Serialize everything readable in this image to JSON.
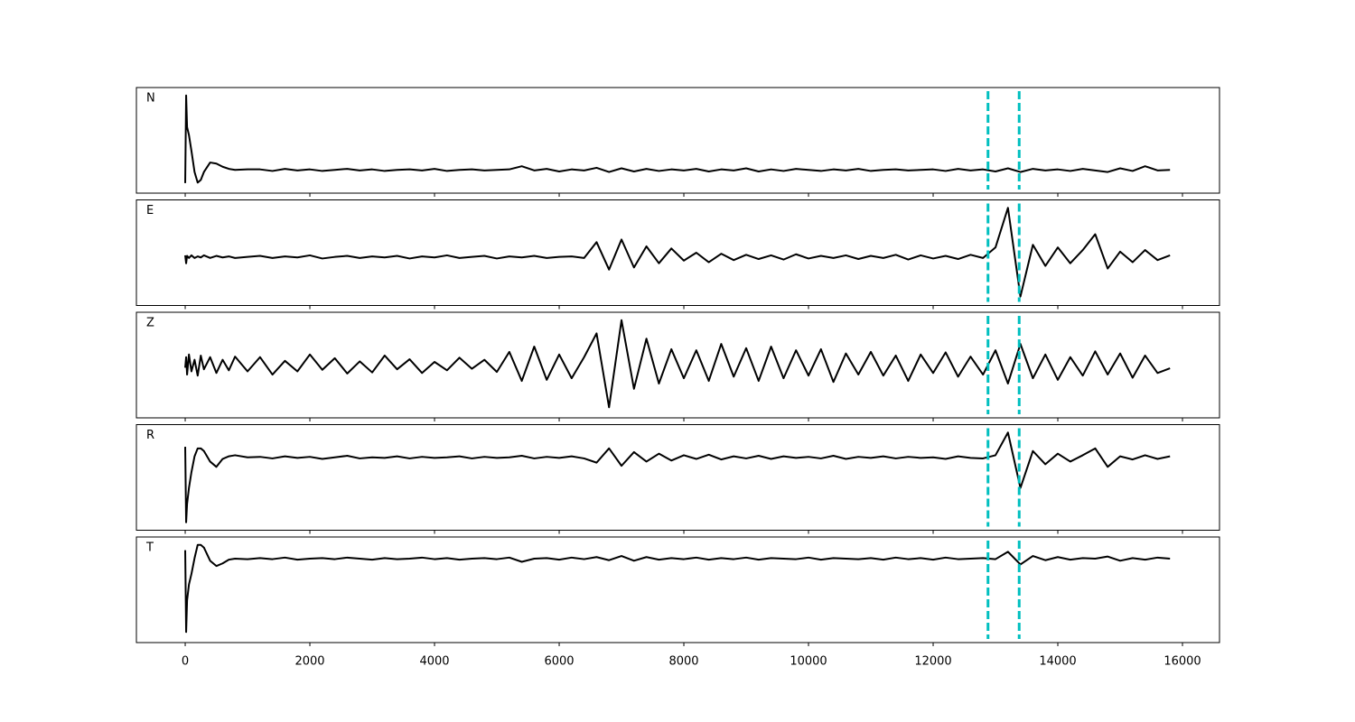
{
  "chart_data": [
    {
      "type": "line",
      "label": "N",
      "color": "#000000",
      "vline_color": "#00bfbf",
      "vlines": [
        12880,
        13380
      ],
      "xlim": [
        -783,
        16594
      ],
      "ylim": [
        -10,
        10
      ],
      "xticks": [
        0,
        2000,
        4000,
        6000,
        8000,
        10000,
        12000,
        14000,
        16000
      ],
      "tick_labels": false,
      "x": [
        0,
        15,
        30,
        60,
        100,
        150,
        200,
        250,
        300,
        400,
        500,
        600,
        700,
        800,
        1000,
        1200,
        1400,
        1600,
        1800,
        2000,
        2200,
        2400,
        2600,
        2800,
        3000,
        3200,
        3400,
        3600,
        3800,
        4000,
        4200,
        4400,
        4600,
        4800,
        5000,
        5200,
        5400,
        5600,
        5800,
        6000,
        6200,
        6400,
        6600,
        6800,
        7000,
        7200,
        7400,
        7600,
        7800,
        8000,
        8200,
        8400,
        8600,
        8800,
        9000,
        9200,
        9400,
        9600,
        9800,
        10000,
        10200,
        10400,
        10600,
        10800,
        11000,
        11200,
        11400,
        11600,
        11800,
        12000,
        12200,
        12400,
        12600,
        12800,
        13000,
        13200,
        13400,
        13600,
        13800,
        14000,
        14200,
        14400,
        14600,
        14800,
        15000,
        15200,
        15400,
        15600,
        15800
      ],
      "values": [
        -8.1,
        8.5,
        2.5,
        1.0,
        -2.0,
        -6.0,
        -8.0,
        -7.5,
        -6.0,
        -4.2,
        -4.4,
        -5.0,
        -5.4,
        -5.6,
        -5.5,
        -5.5,
        -5.8,
        -5.4,
        -5.7,
        -5.5,
        -5.8,
        -5.6,
        -5.4,
        -5.7,
        -5.5,
        -5.8,
        -5.6,
        -5.5,
        -5.7,
        -5.4,
        -5.8,
        -5.6,
        -5.5,
        -5.7,
        -5.6,
        -5.5,
        -4.9,
        -5.7,
        -5.4,
        -5.9,
        -5.5,
        -5.7,
        -5.2,
        -6.0,
        -5.3,
        -5.9,
        -5.4,
        -5.8,
        -5.5,
        -5.7,
        -5.4,
        -5.9,
        -5.5,
        -5.7,
        -5.3,
        -5.9,
        -5.5,
        -5.8,
        -5.4,
        -5.6,
        -5.8,
        -5.5,
        -5.7,
        -5.4,
        -5.8,
        -5.6,
        -5.5,
        -5.7,
        -5.6,
        -5.5,
        -5.8,
        -5.4,
        -5.7,
        -5.5,
        -5.9,
        -5.3,
        -6.0,
        -5.4,
        -5.7,
        -5.5,
        -5.8,
        -5.4,
        -5.7,
        -6.0,
        -5.3,
        -5.8,
        -4.9,
        -5.7,
        -5.6
      ]
    },
    {
      "type": "line",
      "label": "E",
      "color": "#000000",
      "vline_color": "#00bfbf",
      "vlines": [
        12880,
        13380
      ],
      "xlim": [
        -783,
        16594
      ],
      "ylim": [
        -10,
        10
      ],
      "xticks": [
        0,
        2000,
        4000,
        6000,
        8000,
        10000,
        12000,
        14000,
        16000
      ],
      "tick_labels": false,
      "x": [
        0,
        15,
        30,
        60,
        100,
        150,
        200,
        250,
        300,
        400,
        500,
        600,
        700,
        800,
        1000,
        1200,
        1400,
        1600,
        1800,
        2000,
        2200,
        2400,
        2600,
        2800,
        3000,
        3200,
        3400,
        3600,
        3800,
        4000,
        4200,
        4400,
        4600,
        4800,
        5000,
        5200,
        5400,
        5600,
        5800,
        6000,
        6200,
        6400,
        6600,
        6800,
        7000,
        7200,
        7400,
        7600,
        7800,
        8000,
        8200,
        8400,
        8600,
        8800,
        9000,
        9200,
        9400,
        9600,
        9800,
        10000,
        10200,
        10400,
        10600,
        10800,
        11000,
        11200,
        11400,
        11600,
        11800,
        12000,
        12200,
        12400,
        12600,
        12800,
        13000,
        13200,
        13400,
        13600,
        13800,
        14000,
        14200,
        14400,
        14600,
        14800,
        15000,
        15200,
        15400,
        15600,
        15800
      ],
      "values": [
        -0.5,
        -2.0,
        -0.6,
        -1.0,
        -0.5,
        -1.0,
        -0.7,
        -0.9,
        -0.5,
        -1.0,
        -0.6,
        -0.9,
        -0.7,
        -1.0,
        -0.8,
        -0.6,
        -1.0,
        -0.7,
        -0.9,
        -0.5,
        -1.1,
        -0.8,
        -0.6,
        -1.0,
        -0.7,
        -0.9,
        -0.6,
        -1.1,
        -0.7,
        -0.9,
        -0.5,
        -1.0,
        -0.8,
        -0.6,
        -1.1,
        -0.7,
        -0.9,
        -0.6,
        -1.0,
        -0.8,
        -0.7,
        -1.0,
        2.0,
        -3.2,
        2.5,
        -2.8,
        1.2,
        -2.0,
        0.8,
        -1.5,
        0.0,
        -1.8,
        -0.2,
        -1.4,
        -0.4,
        -1.2,
        -0.5,
        -1.3,
        -0.3,
        -1.1,
        -0.6,
        -1.0,
        -0.5,
        -1.2,
        -0.6,
        -1.0,
        -0.4,
        -1.3,
        -0.5,
        -1.1,
        -0.6,
        -1.2,
        -0.4,
        -1.0,
        1.0,
        8.5,
        -8.3,
        1.5,
        -2.5,
        1.0,
        -2.0,
        0.5,
        3.5,
        -3.0,
        0.2,
        -1.8,
        0.5,
        -1.4,
        -0.5
      ]
    },
    {
      "type": "line",
      "label": "Z",
      "color": "#000000",
      "vline_color": "#00bfbf",
      "vlines": [
        12880,
        13380
      ],
      "xlim": [
        -783,
        16594
      ],
      "ylim": [
        -10,
        10
      ],
      "xticks": [
        0,
        2000,
        4000,
        6000,
        8000,
        10000,
        12000,
        14000,
        16000
      ],
      "tick_labels": false,
      "x": [
        0,
        15,
        30,
        60,
        100,
        150,
        200,
        250,
        300,
        400,
        500,
        600,
        700,
        800,
        1000,
        1200,
        1400,
        1600,
        1800,
        2000,
        2200,
        2400,
        2600,
        2800,
        3000,
        3200,
        3400,
        3600,
        3800,
        4000,
        4200,
        4400,
        4600,
        4800,
        5000,
        5200,
        5400,
        5600,
        5800,
        6000,
        6200,
        6400,
        6600,
        6800,
        7000,
        7200,
        7400,
        7600,
        7800,
        8000,
        8200,
        8400,
        8600,
        8800,
        9000,
        9200,
        9400,
        9600,
        9800,
        10000,
        10200,
        10400,
        10600,
        10800,
        11000,
        11200,
        11400,
        11600,
        11800,
        12000,
        12200,
        12400,
        12600,
        12800,
        13000,
        13200,
        13400,
        13600,
        13800,
        14000,
        14200,
        14400,
        14600,
        14800,
        15000,
        15200,
        15400,
        15600,
        15800
      ],
      "values": [
        -0.5,
        1.5,
        -1.8,
        2.0,
        -1.2,
        1.0,
        -2.0,
        1.8,
        -0.8,
        1.5,
        -1.5,
        1.0,
        -1.0,
        1.6,
        -1.2,
        1.5,
        -1.8,
        0.8,
        -1.2,
        2.0,
        -0.9,
        1.3,
        -1.6,
        0.7,
        -1.4,
        1.8,
        -0.8,
        1.1,
        -1.5,
        0.6,
        -1.0,
        1.4,
        -0.7,
        1.0,
        -1.3,
        2.5,
        -3.0,
        3.5,
        -2.8,
        2.0,
        -2.5,
        1.5,
        6.0,
        -8.0,
        8.5,
        -4.5,
        5.0,
        -3.5,
        3.0,
        -2.5,
        2.8,
        -3.0,
        4.0,
        -2.2,
        3.2,
        -3.0,
        3.5,
        -2.5,
        2.8,
        -2.0,
        3.0,
        -3.2,
        2.2,
        -1.8,
        2.5,
        -2.0,
        1.8,
        -3.0,
        2.0,
        -1.5,
        2.4,
        -2.2,
        1.6,
        -1.8,
        2.8,
        -3.5,
        4.0,
        -2.5,
        2.0,
        -2.8,
        1.5,
        -2.0,
        2.6,
        -1.8,
        2.2,
        -2.4,
        1.8,
        -1.5,
        -0.6
      ]
    },
    {
      "type": "line",
      "label": "R",
      "color": "#000000",
      "vline_color": "#00bfbf",
      "vlines": [
        12880,
        13380
      ],
      "xlim": [
        -783,
        16594
      ],
      "ylim": [
        -10,
        10
      ],
      "xticks": [
        0,
        2000,
        4000,
        6000,
        8000,
        10000,
        12000,
        14000,
        16000
      ],
      "tick_labels": false,
      "x": [
        0,
        15,
        30,
        60,
        100,
        150,
        200,
        250,
        300,
        400,
        500,
        600,
        700,
        800,
        1000,
        1200,
        1400,
        1600,
        1800,
        2000,
        2200,
        2400,
        2600,
        2800,
        3000,
        3200,
        3400,
        3600,
        3800,
        4000,
        4200,
        4400,
        4600,
        4800,
        5000,
        5200,
        5400,
        5600,
        5800,
        6000,
        6200,
        6400,
        6600,
        6800,
        7000,
        7200,
        7400,
        7600,
        7800,
        8000,
        8200,
        8400,
        8600,
        8800,
        9000,
        9200,
        9400,
        9600,
        9800,
        10000,
        10200,
        10400,
        10600,
        10800,
        11000,
        11200,
        11400,
        11600,
        11800,
        12000,
        12200,
        12400,
        12600,
        12800,
        13000,
        13200,
        13400,
        13600,
        13800,
        14000,
        14200,
        14400,
        14600,
        14800,
        15000,
        15200,
        15400,
        15600,
        15800
      ],
      "values": [
        5.8,
        -8.5,
        -5.0,
        -2.0,
        1.0,
        4.0,
        5.5,
        5.5,
        5.0,
        3.0,
        2.0,
        3.5,
        4.0,
        4.2,
        3.8,
        3.9,
        3.6,
        4.0,
        3.7,
        3.9,
        3.5,
        3.8,
        4.1,
        3.6,
        3.8,
        3.7,
        4.0,
        3.6,
        3.9,
        3.7,
        3.8,
        4.0,
        3.6,
        3.9,
        3.7,
        3.8,
        4.1,
        3.6,
        3.9,
        3.7,
        4.0,
        3.6,
        2.8,
        5.5,
        2.2,
        4.8,
        3.0,
        4.5,
        3.2,
        4.2,
        3.5,
        4.3,
        3.4,
        4.0,
        3.6,
        4.1,
        3.5,
        4.0,
        3.7,
        3.9,
        3.6,
        4.1,
        3.5,
        3.9,
        3.7,
        4.0,
        3.6,
        3.9,
        3.7,
        3.8,
        3.5,
        4.0,
        3.7,
        3.6,
        4.2,
        8.5,
        -2.0,
        5.0,
        2.5,
        4.5,
        3.0,
        4.2,
        5.5,
        2.0,
        4.0,
        3.4,
        4.2,
        3.5,
        4.0
      ]
    },
    {
      "type": "line",
      "label": "T",
      "color": "#000000",
      "vline_color": "#00bfbf",
      "vlines": [
        12880,
        13380
      ],
      "xlim": [
        -783,
        16594
      ],
      "ylim": [
        -10,
        10
      ],
      "xticks": [
        0,
        2000,
        4000,
        6000,
        8000,
        10000,
        12000,
        14000,
        16000
      ],
      "tick_labels": true,
      "x": [
        0,
        15,
        30,
        60,
        100,
        150,
        200,
        250,
        300,
        400,
        500,
        600,
        700,
        800,
        1000,
        1200,
        1400,
        1600,
        1800,
        2000,
        2200,
        2400,
        2600,
        2800,
        3000,
        3200,
        3400,
        3600,
        3800,
        4000,
        4200,
        4400,
        4600,
        4800,
        5000,
        5200,
        5400,
        5600,
        5800,
        6000,
        6200,
        6400,
        6600,
        6800,
        7000,
        7200,
        7400,
        7600,
        7800,
        8000,
        8200,
        8400,
        8600,
        8800,
        9000,
        9200,
        9400,
        9600,
        9800,
        10000,
        10200,
        10400,
        10600,
        10800,
        11000,
        11200,
        11400,
        11600,
        11800,
        12000,
        12200,
        12400,
        12600,
        12800,
        13000,
        13200,
        13400,
        13600,
        13800,
        14000,
        14200,
        14400,
        14600,
        14800,
        15000,
        15200,
        15400,
        15600,
        15800
      ],
      "values": [
        7.5,
        -8.0,
        -2.0,
        1.0,
        3.0,
        6.0,
        8.5,
        8.5,
        8.0,
        5.5,
        4.5,
        5.0,
        5.7,
        5.9,
        5.8,
        6.0,
        5.8,
        6.1,
        5.7,
        5.9,
        6.0,
        5.8,
        6.1,
        5.9,
        5.7,
        6.0,
        5.8,
        5.9,
        6.1,
        5.8,
        6.0,
        5.7,
        5.9,
        6.0,
        5.8,
        6.1,
        5.3,
        5.9,
        6.0,
        5.7,
        6.1,
        5.8,
        6.2,
        5.6,
        6.4,
        5.5,
        6.2,
        5.7,
        6.0,
        5.8,
        6.1,
        5.7,
        6.0,
        5.8,
        6.1,
        5.7,
        6.0,
        5.9,
        5.8,
        6.1,
        5.7,
        6.0,
        5.9,
        5.8,
        6.0,
        5.7,
        6.1,
        5.8,
        6.0,
        5.7,
        6.1,
        5.8,
        5.9,
        6.0,
        5.8,
        7.2,
        4.8,
        6.4,
        5.6,
        6.2,
        5.7,
        6.0,
        5.9,
        6.3,
        5.5,
        6.0,
        5.7,
        6.1,
        5.9
      ]
    }
  ]
}
